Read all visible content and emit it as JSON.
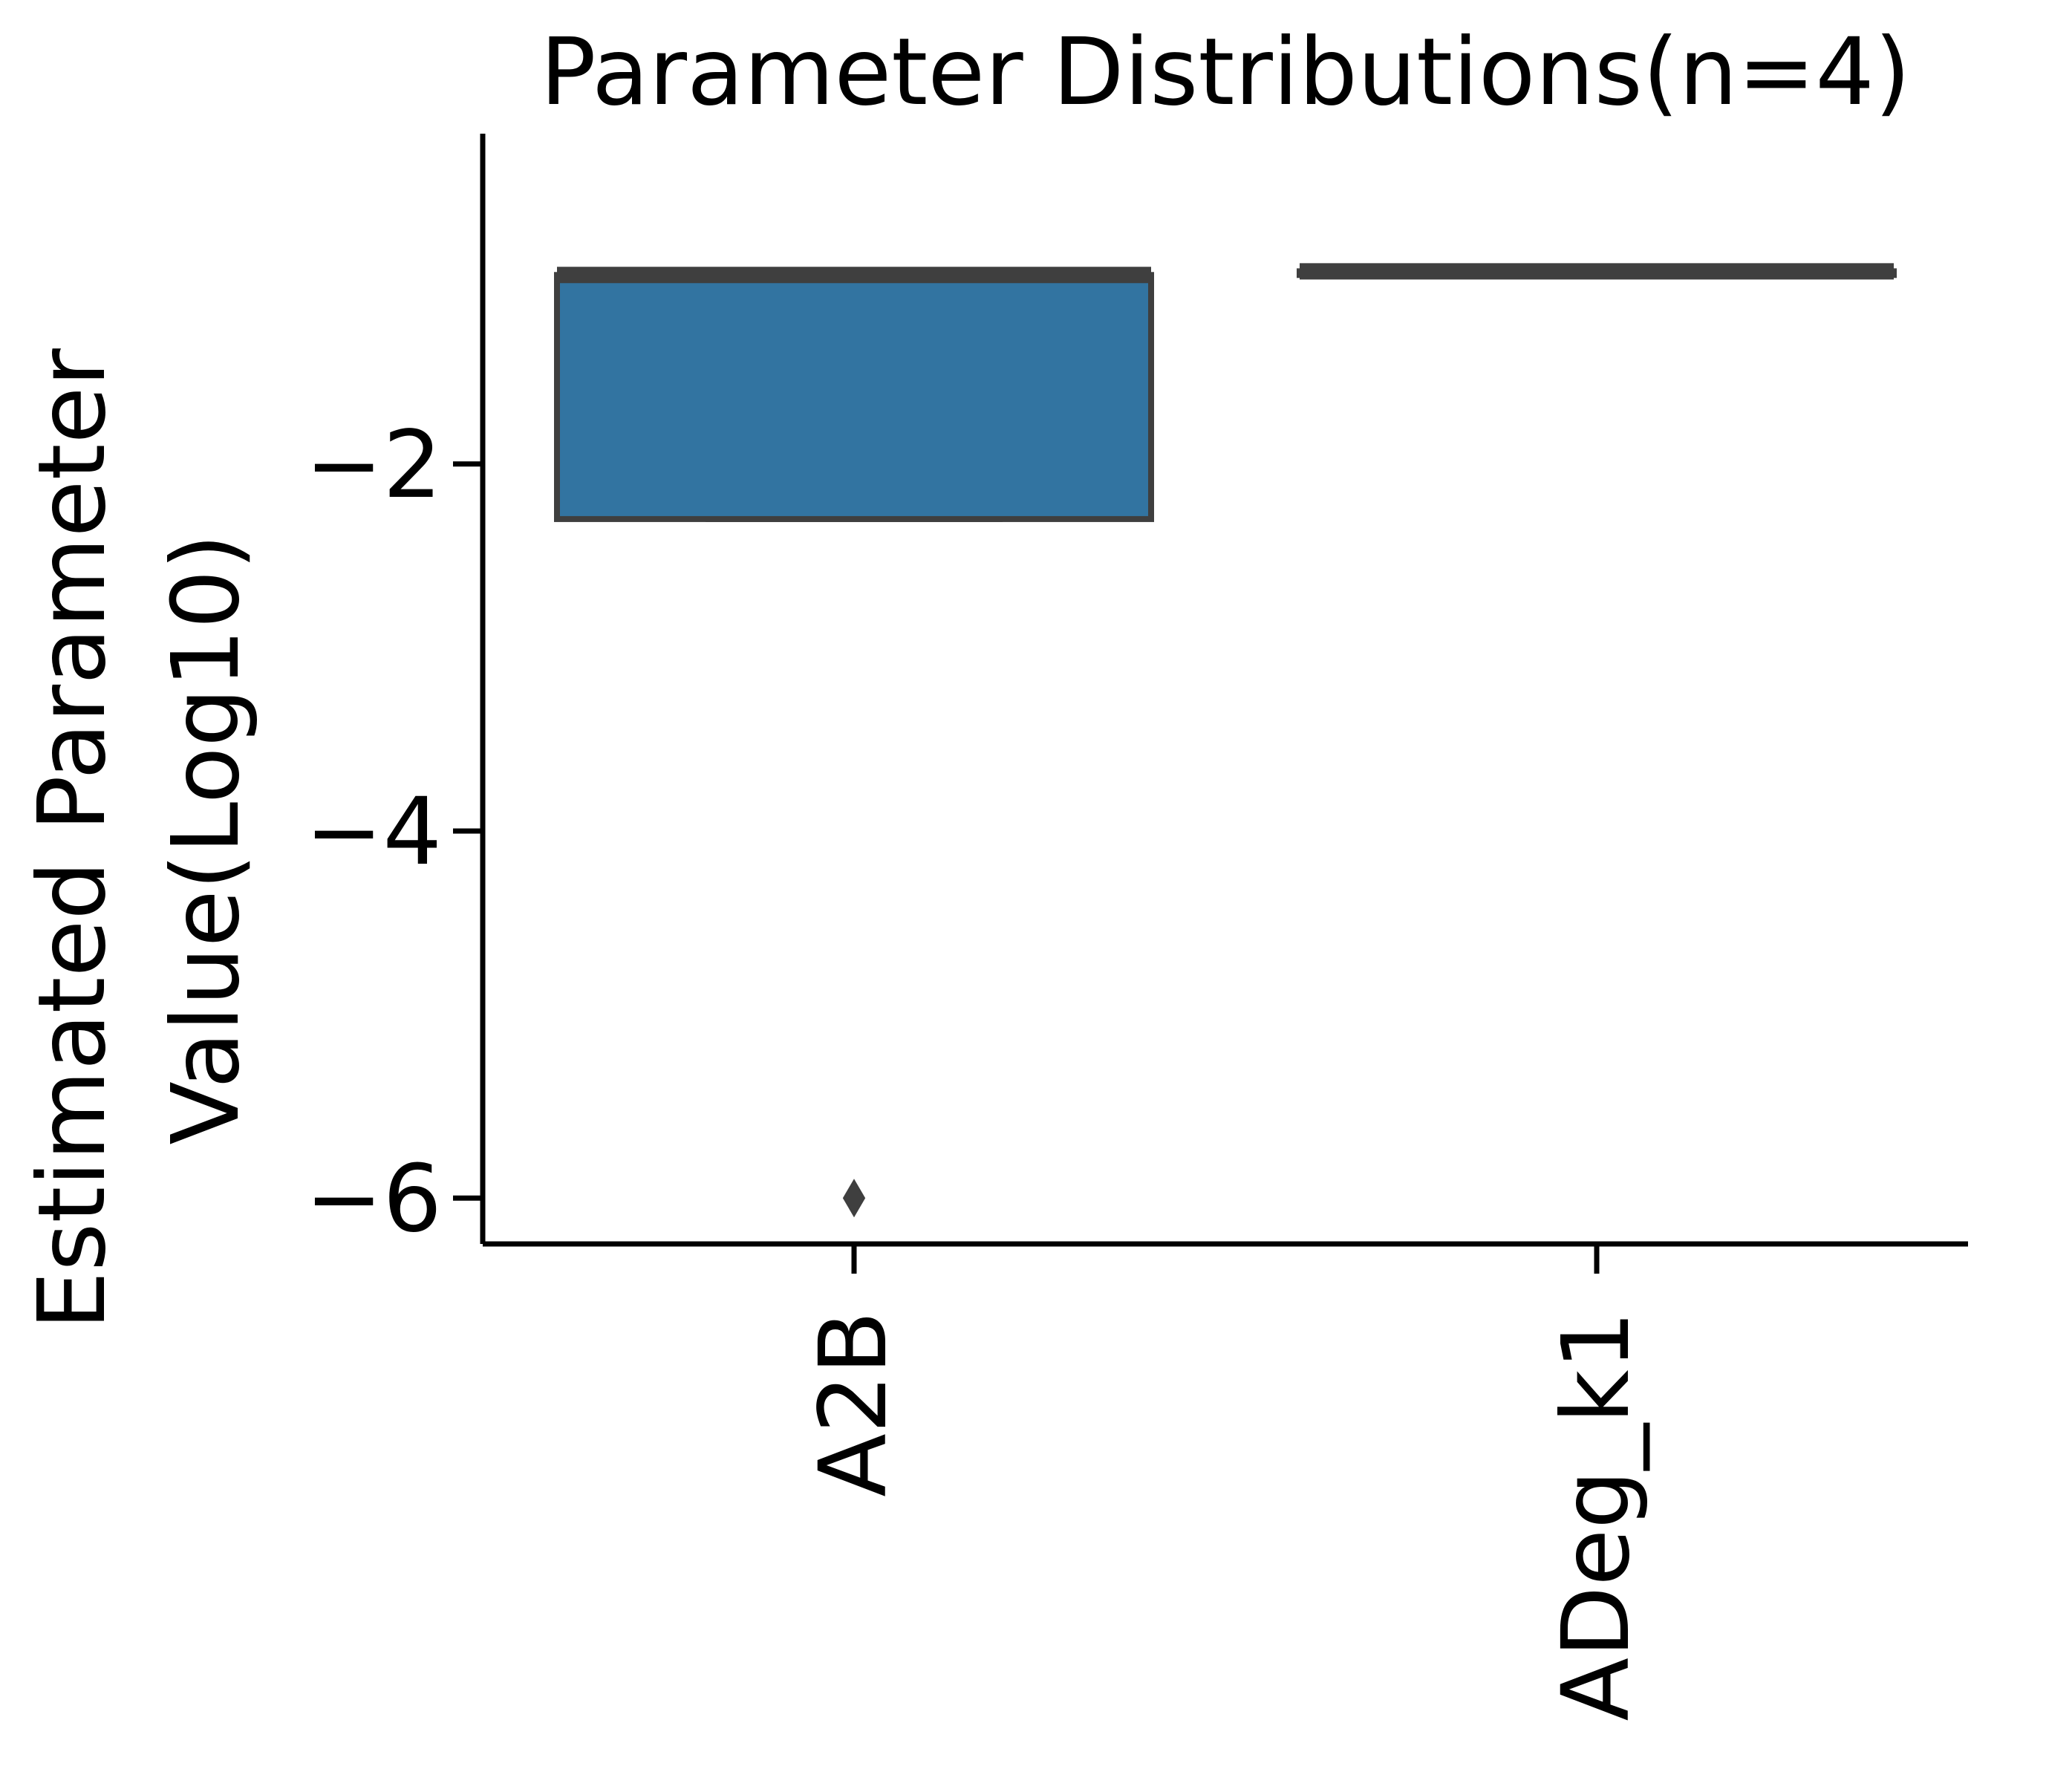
{
  "chart_data": {
    "type": "box",
    "title": "Parameter Distributions(n=4)",
    "ylabel_lines": [
      "Estimated Parameter",
      "Value(Log10)"
    ],
    "xlabel": "",
    "categories": [
      "A2B",
      "ADeg_k1"
    ],
    "ylim": [
      -6.25,
      -0.2
    ],
    "yticks": [
      -2,
      -4,
      -6
    ],
    "ytick_labels": [
      "−2",
      "−4",
      "−6"
    ],
    "boxes": [
      {
        "category": "A2B",
        "q1": -2.3,
        "median": -0.97,
        "q3": -0.97,
        "whisker_low": -2.3,
        "whisker_high": -0.95,
        "outliers": [
          -6.0
        ]
      },
      {
        "category": "ADeg_k1",
        "q1": -0.97,
        "median": -0.95,
        "q3": -0.95,
        "whisker_low": -0.97,
        "whisker_high": -0.95,
        "outliers": []
      }
    ],
    "box_color": "#3274a1",
    "line_color": "#3f3f3f",
    "grid": false
  }
}
